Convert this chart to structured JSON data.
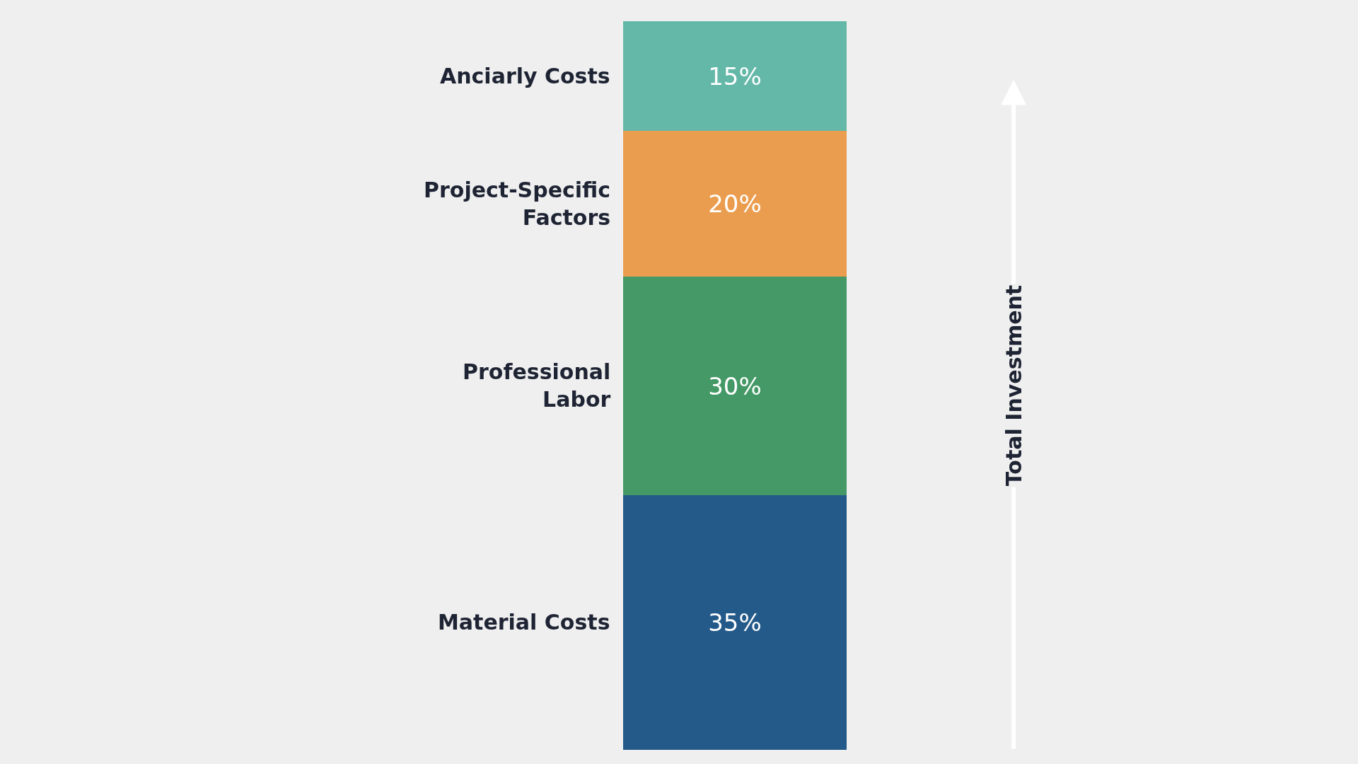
{
  "chart_data": {
    "type": "bar",
    "stacked": true,
    "categories": [
      null
    ],
    "annotations": [
      "Total Investment"
    ],
    "series": [
      {
        "name": "Material Costs",
        "color": "#245a8a",
        "values": [
          35
        ],
        "value_labels": [
          "35%"
        ]
      },
      {
        "name": "Professional Labor",
        "color": "#449966",
        "values": [
          30
        ],
        "value_labels": [
          "30%"
        ]
      },
      {
        "name": "Project-Specific Factors",
        "color": "#eb9d4f",
        "values": [
          20
        ],
        "value_labels": [
          "20%"
        ]
      },
      {
        "name": "Anciarly Costs",
        "color": "#64b8a8",
        "values": [
          15
        ],
        "value_labels": [
          "15%"
        ]
      }
    ]
  }
}
